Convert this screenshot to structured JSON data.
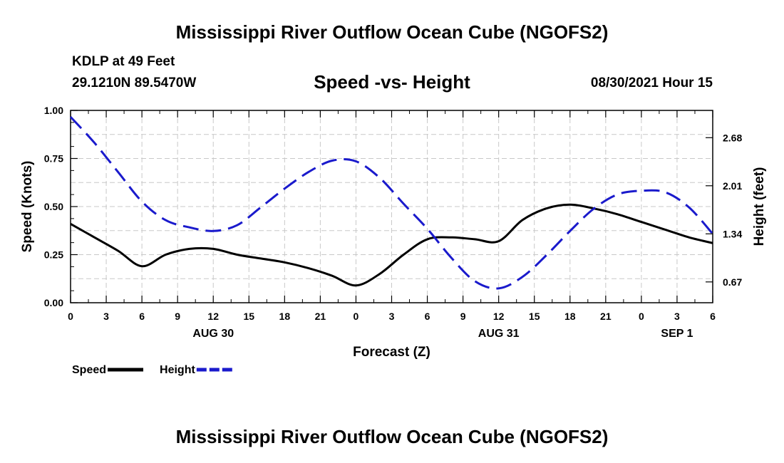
{
  "header": {
    "title": "Mississippi River Outflow Ocean Cube (NGOFS2)",
    "station": "KDLP at 49 Feet",
    "coords": "29.1210N  89.5470W",
    "subtitle": "Speed -vs- Height",
    "datetime": "08/30/2021 Hour 15"
  },
  "footer": {
    "title": "Mississippi River Outflow Ocean Cube (NGOFS2)"
  },
  "chart_data": {
    "type": "line",
    "xlabel": "Forecast (Z)",
    "ylabel_left": "Speed (Knots)",
    "ylabel_right": "Height (feet)",
    "x_hours": [
      0,
      54
    ],
    "x_tick_labels": [
      "0",
      "3",
      "6",
      "9",
      "12",
      "15",
      "18",
      "21",
      "0",
      "3",
      "6",
      "9",
      "12",
      "15",
      "18",
      "21",
      "0",
      "3",
      "6"
    ],
    "date_labels": [
      {
        "label": "AUG 30",
        "hour": 12
      },
      {
        "label": "AUG 31",
        "hour": 36
      },
      {
        "label": "SEP 1",
        "hour": 51
      }
    ],
    "ylim_left": [
      0,
      1.0
    ],
    "yticks_left": [
      "0.00",
      "0.25",
      "0.50",
      "0.75",
      "1.00"
    ],
    "ylim_right": [
      0.38,
      3.06
    ],
    "yticks_right": [
      {
        "label": "0.67",
        "value": 0.67
      },
      {
        "label": "1.34",
        "value": 1.34
      },
      {
        "label": "2.01",
        "value": 2.01
      },
      {
        "label": "2.68",
        "value": 2.68
      }
    ],
    "legend": [
      {
        "name": "Speed",
        "color": "#000000",
        "style": "solid"
      },
      {
        "name": "Height",
        "color": "#1a1acc",
        "style": "dashed"
      }
    ],
    "series": [
      {
        "name": "Speed",
        "axis": "left",
        "color": "#000000",
        "x": [
          0,
          2,
          4,
          6,
          8,
          10,
          12,
          14,
          16,
          18,
          20,
          22,
          24,
          26,
          28,
          30,
          32,
          34,
          36,
          38,
          40,
          42,
          44,
          46,
          48,
          50,
          52,
          54
        ],
        "y": [
          0.41,
          0.34,
          0.27,
          0.19,
          0.25,
          0.28,
          0.28,
          0.25,
          0.23,
          0.21,
          0.18,
          0.14,
          0.09,
          0.15,
          0.25,
          0.33,
          0.34,
          0.33,
          0.32,
          0.43,
          0.49,
          0.51,
          0.49,
          0.46,
          0.42,
          0.38,
          0.34,
          0.31
        ]
      },
      {
        "name": "Height",
        "axis": "right",
        "color": "#1a1acc",
        "x": [
          0,
          2,
          4,
          6,
          8,
          10,
          12,
          14,
          16,
          18,
          20,
          22,
          24,
          26,
          28,
          30,
          32,
          34,
          36,
          38,
          40,
          42,
          44,
          46,
          48,
          50,
          52,
          54
        ],
        "y": [
          2.97,
          2.61,
          2.2,
          1.79,
          1.53,
          1.43,
          1.38,
          1.46,
          1.71,
          1.97,
          2.2,
          2.36,
          2.35,
          2.12,
          1.76,
          1.41,
          1.01,
          0.68,
          0.58,
          0.74,
          1.04,
          1.38,
          1.69,
          1.89,
          1.94,
          1.92,
          1.71,
          1.34
        ]
      }
    ]
  }
}
